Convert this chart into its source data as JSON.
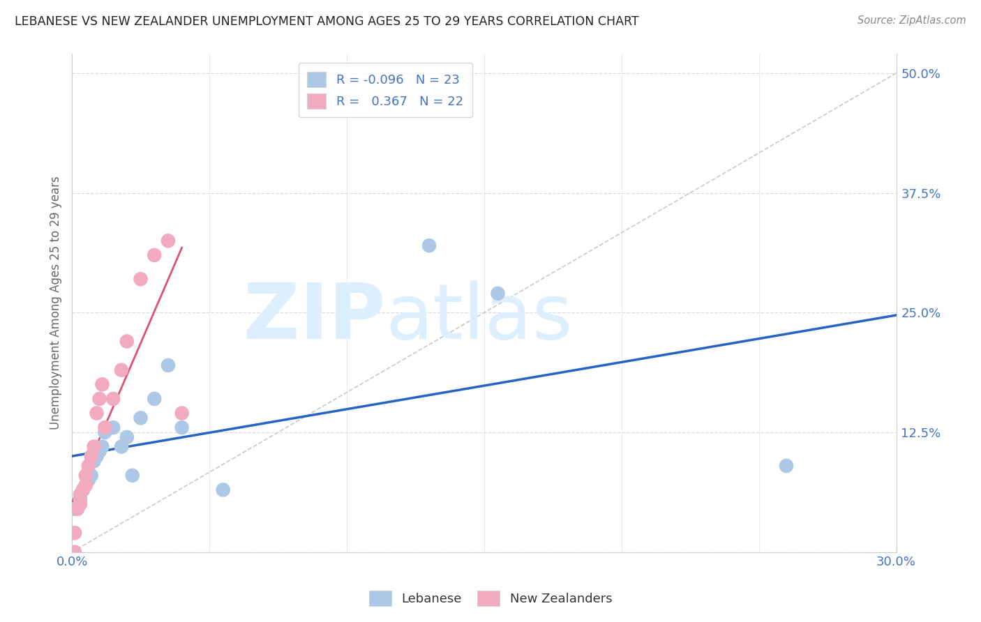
{
  "title": "LEBANESE VS NEW ZEALANDER UNEMPLOYMENT AMONG AGES 25 TO 29 YEARS CORRELATION CHART",
  "source": "Source: ZipAtlas.com",
  "ylabel": "Unemployment Among Ages 25 to 29 years",
  "xlim": [
    0.0,
    0.3
  ],
  "ylim": [
    0.0,
    0.52
  ],
  "xticks": [
    0.0,
    0.05,
    0.1,
    0.15,
    0.2,
    0.25,
    0.3
  ],
  "xtick_labels": [
    "0.0%",
    "",
    "",
    "",
    "",
    "",
    "30.0%"
  ],
  "yticks": [
    0.0,
    0.125,
    0.25,
    0.375,
    0.5
  ],
  "ytick_labels": [
    "",
    "12.5%",
    "25.0%",
    "37.5%",
    "50.0%"
  ],
  "legend_r_lebanese": "-0.096",
  "legend_n_lebanese": "23",
  "legend_r_nz": "0.367",
  "legend_n_nz": "22",
  "lebanese_color": "#adc8e6",
  "nz_color": "#f2aabf",
  "trendline_lebanese_color": "#2563c4",
  "trendline_nz_color": "#e05070",
  "lebanese_x": [
    0.001,
    0.003,
    0.004,
    0.005,
    0.006,
    0.007,
    0.008,
    0.009,
    0.01,
    0.011,
    0.012,
    0.015,
    0.018,
    0.02,
    0.022,
    0.025,
    0.03,
    0.035,
    0.04,
    0.055,
    0.13,
    0.155,
    0.26
  ],
  "lebanese_y": [
    0.045,
    0.055,
    0.065,
    0.07,
    0.075,
    0.08,
    0.095,
    0.1,
    0.105,
    0.11,
    0.125,
    0.13,
    0.11,
    0.12,
    0.08,
    0.14,
    0.16,
    0.195,
    0.13,
    0.065,
    0.32,
    0.27,
    0.09
  ],
  "nz_x": [
    0.001,
    0.001,
    0.002,
    0.003,
    0.003,
    0.004,
    0.005,
    0.005,
    0.006,
    0.007,
    0.008,
    0.009,
    0.01,
    0.011,
    0.012,
    0.015,
    0.018,
    0.02,
    0.025,
    0.03,
    0.035,
    0.04
  ],
  "nz_y": [
    0.0,
    0.02,
    0.045,
    0.05,
    0.06,
    0.065,
    0.07,
    0.08,
    0.09,
    0.1,
    0.11,
    0.145,
    0.16,
    0.175,
    0.13,
    0.16,
    0.19,
    0.22,
    0.285,
    0.31,
    0.325,
    0.145
  ],
  "diag_line_color": "#c8c8c8",
  "grid_color": "#d8d8e8",
  "spine_color": "#cccccc",
  "watermark_color": "#ddeeff",
  "tick_color": "#4472C4",
  "ylabel_color": "#666666",
  "title_color": "#222222",
  "source_color": "#888888"
}
